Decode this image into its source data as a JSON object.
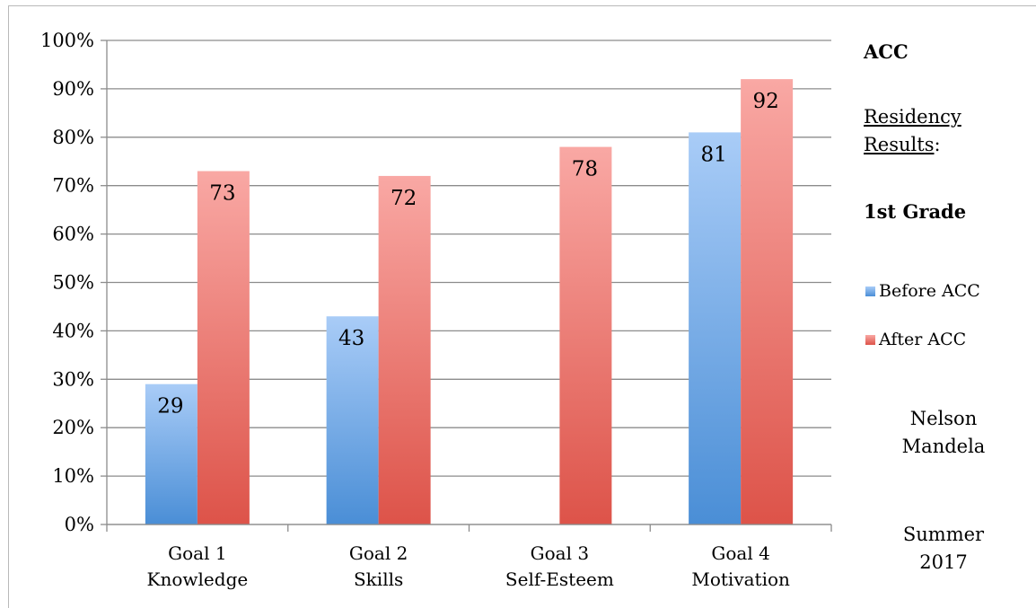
{
  "chart_data": {
    "type": "bar",
    "categories": [
      [
        "Goal 1",
        "Knowledge"
      ],
      [
        "Goal 2",
        "Skills"
      ],
      [
        "Goal 3",
        "Self-Esteem"
      ],
      [
        "Goal 4",
        "Motivation"
      ]
    ],
    "series": [
      {
        "name": "Before ACC",
        "values": [
          29,
          43,
          null,
          81
        ],
        "color_top": "#a9ccf7",
        "color_bottom": "#4a8ed6"
      },
      {
        "name": "After ACC",
        "values": [
          73,
          72,
          78,
          92
        ],
        "color_top": "#f9a8a4",
        "color_bottom": "#dd5349"
      }
    ],
    "data_labels": [
      [
        "29",
        "43",
        "",
        "81"
      ],
      [
        "73",
        "72",
        "78",
        "92"
      ]
    ],
    "yticks": [
      "0%",
      "10%",
      "20%",
      "30%",
      "40%",
      "50%",
      "60%",
      "70%",
      "80%",
      "90%",
      "100%"
    ],
    "ylim": [
      0,
      100
    ],
    "grid": true,
    "legend_position": "right"
  },
  "side": {
    "title": "ACC",
    "subtitle_line1": "Residency",
    "subtitle_line2": "Results",
    "subtitle_colon": ":",
    "grade": "1st Grade",
    "school_line1": "Nelson",
    "school_line2": "Mandela",
    "season_line1": "Summer",
    "season_line2": "2017"
  }
}
